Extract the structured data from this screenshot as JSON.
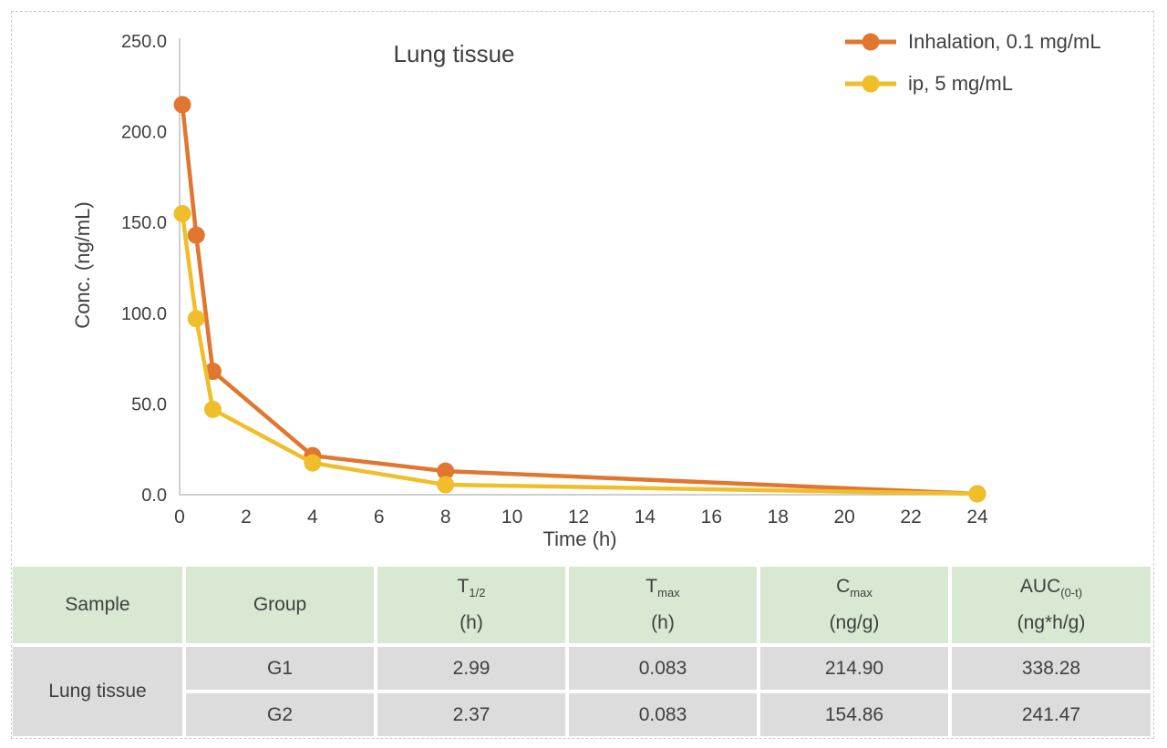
{
  "chart_data": {
    "type": "line",
    "title": "Lung tissue",
    "xlabel": "Time (h)",
    "ylabel": "Conc. (ng/mL)",
    "xlim": [
      0,
      24
    ],
    "ylim": [
      0,
      250
    ],
    "xtick_values": [
      0,
      2,
      4,
      6,
      8,
      10,
      12,
      14,
      16,
      18,
      20,
      22,
      24
    ],
    "xtick_labels": [
      "0",
      "2",
      "4",
      "6",
      "8",
      "10",
      "12",
      "14",
      "16",
      "18",
      "20",
      "22",
      "24"
    ],
    "ytick_values": [
      0,
      50,
      100,
      150,
      200,
      250
    ],
    "ytick_labels": [
      "0.0",
      "50.0",
      "100.0",
      "150.0",
      "200.0",
      "250.0"
    ],
    "grid": false,
    "legend_position": "top-right",
    "series": [
      {
        "name": "Inhalation, 0.1 mg/mL",
        "color": "#E0762F",
        "x": [
          0.083,
          0.5,
          1,
          4,
          8,
          24
        ],
        "y": [
          214.9,
          143,
          68,
          21.5,
          13,
          0.5
        ]
      },
      {
        "name": "ip, 5 mg/mL",
        "color": "#F0BE2B",
        "x": [
          0.083,
          0.5,
          1,
          4,
          8,
          24
        ],
        "y": [
          154.86,
          97,
          47,
          17.5,
          5.5,
          0.5
        ]
      }
    ]
  },
  "colors": {
    "axis_line": "#BFBFBF",
    "text": "#3F3F3F",
    "table_header_bg": "#D8E8D2",
    "table_row_bg": "#DCDCDC",
    "dashed_border": "#C9C9C9"
  },
  "table": {
    "columns": [
      {
        "main": "Sample",
        "sub": "",
        "unit": ""
      },
      {
        "main": "Group",
        "sub": "",
        "unit": ""
      },
      {
        "main": "T",
        "sub": "1/2",
        "unit": "(h)"
      },
      {
        "main": "T",
        "sub": "max",
        "unit": "(h)"
      },
      {
        "main": "C",
        "sub": "max",
        "unit": "(ng/g)"
      },
      {
        "main": "AUC",
        "sub": "(0-t)",
        "unit": "(ng*h/g)"
      }
    ],
    "sample_label": "Lung tissue",
    "rows": [
      {
        "group": "G1",
        "t12": "2.99",
        "tmax": "0.083",
        "cmax": "214.90",
        "auc": "338.28"
      },
      {
        "group": "G2",
        "t12": "2.37",
        "tmax": "0.083",
        "cmax": "154.86",
        "auc": "241.47"
      }
    ]
  }
}
